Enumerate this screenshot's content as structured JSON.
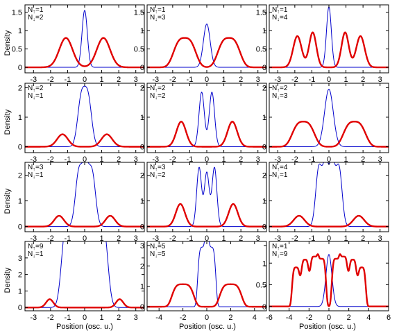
{
  "chart_data": [
    {
      "type": "line",
      "xlim": [
        -3.5,
        3.5
      ],
      "ylim": [
        -0.15,
        1.7
      ],
      "xticks": [
        -3,
        -2,
        -1,
        0,
        1,
        2,
        3
      ],
      "yticks": [
        0,
        0.5,
        1,
        1.5
      ],
      "yticklabels": [
        "0",
        "0.5",
        "1",
        "1.5"
      ],
      "annotation": [
        "N↑=1",
        "N↓=2"
      ],
      "series": [
        {
          "color": "#0000cc",
          "peaks": [
            {
              "mu": 0,
              "a": 1.55,
              "s": 0.22,
              "p": 2
            }
          ]
        },
        {
          "color": "#e00000",
          "peaks": [
            {
              "mu": -1.1,
              "a": 0.8,
              "s": 0.55,
              "p": 2
            },
            {
              "mu": 1.1,
              "a": 0.8,
              "s": 0.55,
              "p": 2
            }
          ]
        }
      ]
    },
    {
      "type": "line",
      "xlim": [
        -3.5,
        3.5
      ],
      "ylim": [
        -0.15,
        1.7
      ],
      "xticks": [
        -3,
        -2,
        -1,
        0,
        1,
        2,
        3
      ],
      "yticks": [
        0,
        0.5,
        1,
        1.5
      ],
      "yticklabels": [
        "0",
        "0.5",
        "1",
        "1.5"
      ],
      "annotation": [
        "N↑=1",
        "N↓=3"
      ],
      "series": [
        {
          "color": "#0000cc",
          "peaks": [
            {
              "mu": 0,
              "a": 1.18,
              "s": 0.28,
              "p": 2
            }
          ]
        },
        {
          "color": "#e00000",
          "peaks": [
            {
              "mu": -1.3,
              "a": 0.8,
              "s": 0.75,
              "p": 3
            },
            {
              "mu": 1.3,
              "a": 0.8,
              "s": 0.75,
              "p": 3
            }
          ]
        }
      ]
    },
    {
      "type": "line",
      "xlim": [
        -3.5,
        3.5
      ],
      "ylim": [
        -0.15,
        1.7
      ],
      "xticks": [
        -3,
        -2,
        -1,
        0,
        1,
        2,
        3
      ],
      "yticks": [
        0,
        0.5,
        1,
        1.5
      ],
      "yticklabels": [
        "0",
        "0.5",
        "1",
        "1.5"
      ],
      "annotation": [
        "N↑=1",
        "N↓=4"
      ],
      "series": [
        {
          "color": "#0000cc",
          "peaks": [
            {
              "mu": 0,
              "a": 1.65,
              "s": 0.2,
              "p": 2
            }
          ]
        },
        {
          "color": "#e00000",
          "peaks": [
            {
              "mu": -1.85,
              "a": 0.85,
              "s": 0.35,
              "p": 2
            },
            {
              "mu": -0.95,
              "a": 0.95,
              "s": 0.3,
              "p": 2
            },
            {
              "mu": 0.95,
              "a": 0.95,
              "s": 0.3,
              "p": 2
            },
            {
              "mu": 1.85,
              "a": 0.85,
              "s": 0.35,
              "p": 2
            }
          ]
        }
      ]
    },
    {
      "type": "line",
      "xlim": [
        -3.5,
        3.5
      ],
      "ylim": [
        -0.2,
        2.15
      ],
      "xticks": [
        -3,
        -2,
        -1,
        0,
        1,
        2,
        3
      ],
      "yticks": [
        0,
        1,
        2
      ],
      "yticklabels": [
        "0",
        "1",
        "2"
      ],
      "annotation": [
        "N↑=2",
        "N↓=1"
      ],
      "series": [
        {
          "color": "#0000cc",
          "peaks": [
            {
              "mu": -0.2,
              "a": 1.6,
              "s": 0.3,
              "p": 2
            },
            {
              "mu": 0.2,
              "a": 1.6,
              "s": 0.3,
              "p": 2
            }
          ]
        },
        {
          "color": "#e00000",
          "peaks": [
            {
              "mu": -1.3,
              "a": 0.42,
              "s": 0.45,
              "p": 2
            },
            {
              "mu": 1.3,
              "a": 0.42,
              "s": 0.45,
              "p": 2
            }
          ]
        }
      ]
    },
    {
      "type": "line",
      "xlim": [
        -3.5,
        3.5
      ],
      "ylim": [
        -0.2,
        2.15
      ],
      "xticks": [
        -3,
        -2,
        -1,
        0,
        1,
        2,
        3
      ],
      "yticks": [
        0,
        1,
        2
      ],
      "yticklabels": [
        "0",
        "1",
        "2"
      ],
      "annotation": [
        "N↑=2",
        "N↓=2"
      ],
      "series": [
        {
          "color": "#0000cc",
          "peaks": [
            {
              "mu": -0.3,
              "a": 1.85,
              "s": 0.22,
              "p": 2
            },
            {
              "mu": 0.3,
              "a": 1.85,
              "s": 0.22,
              "p": 2
            }
          ]
        },
        {
          "color": "#e00000",
          "peaks": [
            {
              "mu": -1.5,
              "a": 0.85,
              "s": 0.4,
              "p": 2
            },
            {
              "mu": 1.5,
              "a": 0.85,
              "s": 0.4,
              "p": 2
            }
          ]
        }
      ]
    },
    {
      "type": "line",
      "xlim": [
        -3.5,
        3.5
      ],
      "ylim": [
        -0.2,
        2.15
      ],
      "xticks": [
        -3,
        -2,
        -1,
        0,
        1,
        2,
        3
      ],
      "yticks": [
        0,
        1,
        2
      ],
      "yticklabels": [
        "0",
        "1",
        "2"
      ],
      "annotation": [
        "N↑=2",
        "N↓=3"
      ],
      "series": [
        {
          "color": "#0000cc",
          "peaks": [
            {
              "mu": 0,
              "a": 1.95,
              "s": 0.36,
              "p": 2
            }
          ]
        },
        {
          "color": "#e00000",
          "peaks": [
            {
              "mu": -1.5,
              "a": 0.85,
              "s": 0.75,
              "p": 3
            },
            {
              "mu": 1.5,
              "a": 0.85,
              "s": 0.75,
              "p": 3
            }
          ]
        }
      ]
    },
    {
      "type": "line",
      "xlim": [
        -3.5,
        3.5
      ],
      "ylim": [
        -0.2,
        2.5
      ],
      "xticks": [
        -3,
        -2,
        -1,
        0,
        1,
        2,
        3
      ],
      "yticks": [
        0,
        1,
        2
      ],
      "yticklabels": [
        "0",
        "1",
        "2"
      ],
      "annotation": [
        "N↑=3",
        "N↓=1"
      ],
      "series": [
        {
          "color": "#0000cc",
          "peaks": [
            {
              "mu": -0.35,
              "a": 2.0,
              "s": 0.28,
              "p": 2
            },
            {
              "mu": 0.05,
              "a": 2.1,
              "s": 0.28,
              "p": 2
            },
            {
              "mu": 0.45,
              "a": 1.95,
              "s": 0.28,
              "p": 2
            }
          ]
        },
        {
          "color": "#e00000",
          "peaks": [
            {
              "mu": -1.5,
              "a": 0.42,
              "s": 0.4,
              "p": 2
            },
            {
              "mu": 1.5,
              "a": 0.42,
              "s": 0.4,
              "p": 2
            }
          ]
        }
      ]
    },
    {
      "type": "line",
      "xlim": [
        -3.5,
        3.5
      ],
      "ylim": [
        -0.2,
        2.5
      ],
      "xticks": [
        -3,
        -2,
        -1,
        0,
        1,
        2,
        3
      ],
      "yticks": [
        0,
        1,
        2
      ],
      "yticklabels": [
        "0",
        "1",
        "2"
      ],
      "annotation": [
        "N↑=3",
        "N↓=2"
      ],
      "series": [
        {
          "color": "#0000cc",
          "peaks": [
            {
              "mu": -0.45,
              "a": 2.3,
              "s": 0.2,
              "p": 2
            },
            {
              "mu": 0,
              "a": 2.1,
              "s": 0.2,
              "p": 2
            },
            {
              "mu": 0.45,
              "a": 2.3,
              "s": 0.2,
              "p": 2
            }
          ]
        },
        {
          "color": "#e00000",
          "peaks": [
            {
              "mu": -1.55,
              "a": 0.88,
              "s": 0.38,
              "p": 2
            },
            {
              "mu": 1.55,
              "a": 0.88,
              "s": 0.38,
              "p": 2
            }
          ]
        }
      ]
    },
    {
      "type": "line",
      "xlim": [
        -3.5,
        3.5
      ],
      "ylim": [
        -0.2,
        2.5
      ],
      "xticks": [
        -3,
        -2,
        -1,
        0,
        1,
        2,
        3
      ],
      "yticks": [
        0,
        1,
        2
      ],
      "yticklabels": [
        "0",
        "1",
        "2"
      ],
      "annotation": [
        "N↑=4",
        "N↓=1"
      ],
      "series": [
        {
          "color": "#0000cc",
          "peaks": [
            {
              "mu": -0.6,
              "a": 2.2,
              "s": 0.25,
              "p": 2
            },
            {
              "mu": -0.2,
              "a": 2.3,
              "s": 0.25,
              "p": 2
            },
            {
              "mu": 0.2,
              "a": 2.3,
              "s": 0.25,
              "p": 2
            },
            {
              "mu": 0.6,
              "a": 2.2,
              "s": 0.25,
              "p": 2
            }
          ]
        },
        {
          "color": "#e00000",
          "peaks": [
            {
              "mu": -1.75,
              "a": 0.42,
              "s": 0.45,
              "p": 2
            },
            {
              "mu": 1.75,
              "a": 0.42,
              "s": 0.45,
              "p": 2
            }
          ]
        }
      ]
    },
    {
      "type": "line",
      "xlim": [
        -3.5,
        3.5
      ],
      "ylim": [
        -0.2,
        4.0
      ],
      "xticks": [
        -3,
        -2,
        -1,
        0,
        1,
        2,
        3
      ],
      "yticks": [
        0,
        1,
        2,
        3
      ],
      "yticklabels": [
        "0",
        "1",
        "2",
        "3"
      ],
      "annotation": [
        "N↑=9",
        "N↓=1"
      ],
      "series": [
        {
          "color": "#0000cc",
          "peaks": [
            {
              "mu": -1.2,
              "a": 3.3,
              "s": 0.3,
              "p": 2
            },
            {
              "mu": -0.9,
              "a": 3.4,
              "s": 0.3,
              "p": 2
            },
            {
              "mu": -0.6,
              "a": 3.45,
              "s": 0.3,
              "p": 2
            },
            {
              "mu": -0.3,
              "a": 3.5,
              "s": 0.3,
              "p": 2
            },
            {
              "mu": 0,
              "a": 3.55,
              "s": 0.3,
              "p": 2
            },
            {
              "mu": 0.3,
              "a": 3.5,
              "s": 0.3,
              "p": 2
            },
            {
              "mu": 0.6,
              "a": 3.45,
              "s": 0.3,
              "p": 2
            },
            {
              "mu": 0.9,
              "a": 3.4,
              "s": 0.3,
              "p": 2
            },
            {
              "mu": 1.2,
              "a": 3.3,
              "s": 0.3,
              "p": 2
            }
          ]
        },
        {
          "color": "#e00000",
          "peaks": [
            {
              "mu": -2.05,
              "a": 0.5,
              "s": 0.3,
              "p": 2
            },
            {
              "mu": 2.05,
              "a": 0.5,
              "s": 0.3,
              "p": 2
            }
          ]
        }
      ]
    },
    {
      "type": "line",
      "xlim": [
        -5,
        5
      ],
      "ylim": [
        -0.2,
        3.2
      ],
      "xticks": [
        -4,
        -2,
        0,
        2,
        4
      ],
      "yticks": [
        0,
        1,
        2,
        3
      ],
      "yticklabels": [
        "0",
        "1",
        "2",
        "3"
      ],
      "annotation": [
        "N↑=5",
        "N↓=5"
      ],
      "series": [
        {
          "color": "#0000cc",
          "peaks": [
            {
              "mu": -0.35,
              "a": 2.92,
              "s": 0.45,
              "p": 4
            },
            {
              "mu": 0.35,
              "a": 2.92,
              "s": 0.45,
              "p": 4
            }
          ]
        },
        {
          "color": "#e00000",
          "peaks": [
            {
              "mu": -2.0,
              "a": 1.1,
              "s": 1.0,
              "p": 4
            },
            {
              "mu": 2.0,
              "a": 1.1,
              "s": 1.0,
              "p": 4
            }
          ]
        }
      ]
    },
    {
      "type": "line",
      "xlim": [
        -6,
        6
      ],
      "ylim": [
        -0.1,
        1.5
      ],
      "xticks": [
        -6,
        -4,
        -2,
        0,
        2,
        4,
        6
      ],
      "yticks": [
        0,
        0.5,
        1
      ],
      "yticklabels": [
        "0",
        "0.5",
        "1"
      ],
      "annotation": [
        "N↑=1",
        "N↓=9"
      ],
      "series": [
        {
          "color": "#0000cc",
          "peaks": [
            {
              "mu": 0,
              "a": 1.2,
              "s": 0.42,
              "p": 2
            }
          ]
        },
        {
          "color": "#e00000",
          "peaks": [
            {
              "mu": -3.3,
              "a": 0.9,
              "s": 0.45,
              "p": 4
            },
            {
              "mu": -2.4,
              "a": 1.08,
              "s": 0.45,
              "p": 4
            },
            {
              "mu": -1.5,
              "a": 1.15,
              "s": 0.45,
              "p": 4
            },
            {
              "mu": -0.7,
              "a": 1.1,
              "s": 0.45,
              "p": 4
            },
            {
              "mu": 0.7,
              "a": 1.1,
              "s": 0.45,
              "p": 4
            },
            {
              "mu": 1.5,
              "a": 1.15,
              "s": 0.45,
              "p": 4
            },
            {
              "mu": 2.4,
              "a": 1.08,
              "s": 0.45,
              "p": 4
            },
            {
              "mu": 3.3,
              "a": 0.9,
              "s": 0.45,
              "p": 4
            }
          ]
        }
      ]
    }
  ],
  "labels": {
    "ylabel": "Density",
    "xlabel": "Position (osc. u.)"
  },
  "colors": {
    "spin_up": "#0000cc",
    "spin_down": "#e00000"
  }
}
